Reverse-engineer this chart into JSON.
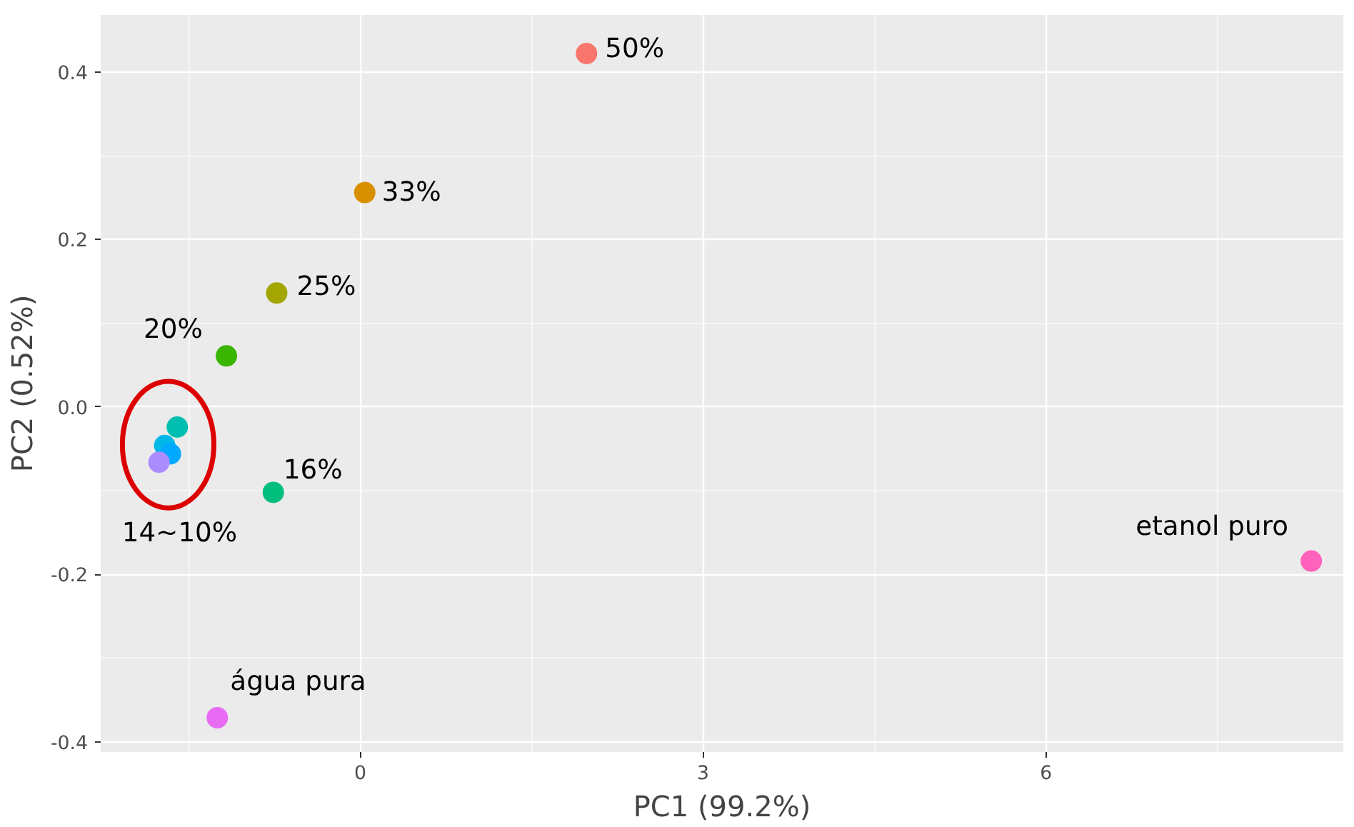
{
  "chart_data": {
    "type": "scatter",
    "xlabel": "PC1 (99.2%)",
    "ylabel": "PC2 (0.52%)",
    "x": [
      1.98,
      0.04,
      -0.73,
      -1.17,
      -0.76,
      -1.6,
      -1.71,
      -1.66,
      -1.76,
      -1.25,
      8.32
    ],
    "values": [
      0.422,
      0.256,
      0.136,
      0.061,
      -0.102,
      -0.024,
      -0.046,
      -0.056,
      -0.066,
      -0.371,
      -0.184
    ],
    "colors": [
      "#f8766d",
      "#d89000",
      "#a3a500",
      "#39b600",
      "#00bf7d",
      "#00bfb0",
      "#00b8e7",
      "#00a9ff",
      "#ab8cff",
      "#e76bf3",
      "#ff62bc"
    ],
    "marker": "circle",
    "xlim": [
      -2.27,
      8.6
    ],
    "ylim": [
      -0.412,
      0.468
    ],
    "xticks": [
      {
        "value": -1.5,
        "label": null
      },
      0,
      {
        "value": 1.5,
        "label": null
      },
      3,
      {
        "value": 4.5,
        "label": null
      },
      6,
      {
        "value": 7.5,
        "label": null
      }
    ],
    "yticks": [
      {
        "value": -0.4,
        "label": "-0.4"
      },
      {
        "value": -0.3,
        "label": null
      },
      {
        "value": -0.2,
        "label": "-0.2"
      },
      {
        "value": -0.1,
        "label": null
      },
      {
        "value": 0.0,
        "label": "0.0"
      },
      {
        "value": 0.1,
        "label": null
      },
      {
        "value": 0.2,
        "label": "0.2"
      },
      {
        "value": 0.3,
        "label": null
      },
      {
        "value": 0.4,
        "label": "0.4"
      }
    ],
    "grid": true,
    "annotations": [
      {
        "text": "50%",
        "x": 1.98,
        "y": 0.422
      },
      {
        "text": "33%",
        "x": 0.04,
        "y": 0.256
      },
      {
        "text": "25%",
        "x": -0.73,
        "y": 0.136
      },
      {
        "text": "20%",
        "x": -1.17,
        "y": 0.061
      },
      {
        "text": "16%",
        "x": -0.76,
        "y": -0.102
      },
      {
        "text": "14~10%",
        "x": -1.76,
        "y": -0.066
      },
      {
        "text": "etanol puro",
        "x": 8.32,
        "y": -0.184
      },
      {
        "text": "água pura",
        "x": -1.25,
        "y": -0.371
      }
    ]
  }
}
